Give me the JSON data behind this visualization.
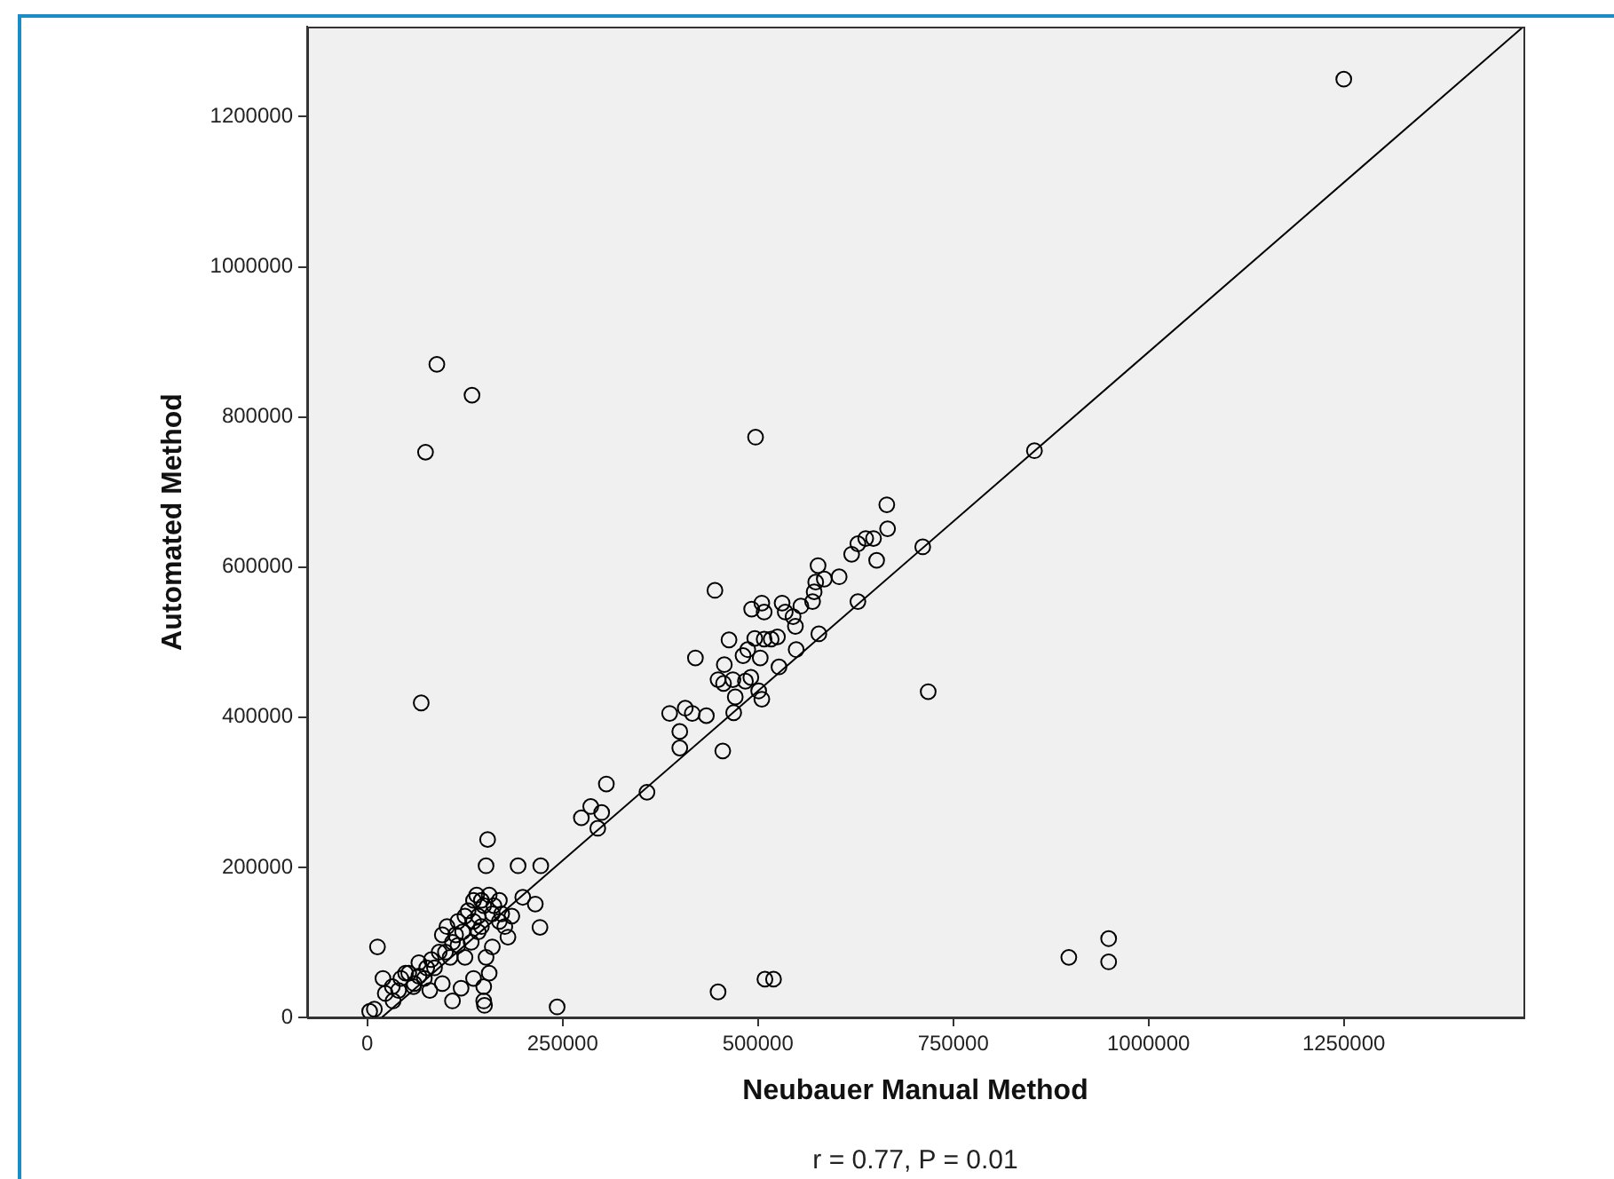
{
  "chart_data": {
    "type": "scatter",
    "xlabel": "Neubauer Manual Method",
    "ylabel": "Automated Method",
    "annotations": [
      "r = 0.77, P = 0.01"
    ],
    "xlim": [
      -77000,
      1480000
    ],
    "ylim": [
      0,
      1320000
    ],
    "xticks": [
      0,
      250000,
      500000,
      750000,
      1000000,
      1250000
    ],
    "yticks": [
      0,
      200000,
      400000,
      600000,
      800000,
      1000000,
      1200000
    ],
    "grid": false,
    "legend": false,
    "marker": "circle",
    "series": [
      {
        "color": "#000000",
        "x": [
          1250000,
          89000,
          134000,
          74500,
          69000,
          497000,
          854000,
          718000,
          711000,
          898000,
          949000,
          949000,
          449000,
          509000,
          520000,
          243000,
          150000,
          149000,
          13000,
          445000,
          455000,
          358000,
          306000,
          286000,
          274000,
          295000,
          300000,
          154000,
          152000,
          193000,
          222000,
          221000,
          215000,
          199000,
          387000,
          400000,
          400000,
          407000,
          416000,
          434000,
          420000,
          449000,
          457000,
          463000,
          456000,
          468000,
          471000,
          469000,
          481000,
          491000,
          492000,
          496000,
          501000,
          505000,
          503000,
          508000,
          508000,
          505000,
          517000,
          527000,
          531000,
          535000,
          545000,
          548000,
          549000,
          555000,
          570000,
          572000,
          574000,
          577000,
          578000,
          585000,
          604000,
          620000,
          628000,
          628000,
          638000,
          648000,
          652000,
          666000,
          665000,
          525000,
          487000,
          484000,
          3000,
          9000,
          20000,
          23000,
          33000,
          40000,
          49000,
          59000,
          66000,
          76000,
          82000,
          92000,
          96000,
          102000,
          109000,
          116000,
          122000,
          129000,
          136000,
          142000,
          149000,
          156000,
          162000,
          169000,
          176000,
          180000,
          169000,
          160000,
          156000,
          149000,
          136000,
          120000,
          109000,
          96000,
          80000,
          66000,
          53000,
          106000,
          116000,
          125000,
          133000,
          142000,
          125000,
          136000,
          146000,
          113000,
          100000,
          86000,
          73000,
          60000,
          140000,
          146000,
          160000,
          172000,
          185000,
          152000,
          32000,
          43000
        ],
        "values": [
          1250000,
          870000,
          829000,
          753000,
          419000,
          773000,
          755000,
          434000,
          627000,
          80000,
          105000,
          74000,
          34000,
          51000,
          51000,
          14000,
          16000,
          22000,
          94000,
          569000,
          355000,
          300000,
          311000,
          281000,
          266000,
          252000,
          273000,
          237000,
          202000,
          202000,
          202000,
          120000,
          151000,
          160000,
          405000,
          381000,
          359000,
          412000,
          405000,
          402000,
          479000,
          450000,
          470000,
          503000,
          445000,
          450000,
          427000,
          406000,
          482000,
          453000,
          544000,
          505000,
          435000,
          424000,
          479000,
          504000,
          540000,
          552000,
          504000,
          467000,
          552000,
          540000,
          534000,
          521000,
          490000,
          548000,
          554000,
          567000,
          580000,
          602000,
          511000,
          584000,
          587000,
          617000,
          631000,
          554000,
          638000,
          638000,
          609000,
          651000,
          683000,
          507000,
          490000,
          448000,
          8000,
          11000,
          52000,
          32000,
          22000,
          36000,
          59000,
          41000,
          55000,
          66000,
          77000,
          87000,
          110000,
          121000,
          100000,
          128000,
          114000,
          142000,
          156000,
          135000,
          149000,
          163000,
          149000,
          156000,
          121000,
          107000,
          128000,
          94000,
          59000,
          41000,
          52000,
          39000,
          22000,
          45000,
          36000,
          73000,
          59000,
          80000,
          96000,
          80000,
          100000,
          114000,
          135000,
          128000,
          121000,
          110000,
          87000,
          66000,
          52000,
          45000,
          163000,
          156000,
          138000,
          138000,
          135000,
          80000,
          41000,
          52000
        ]
      },
      {
        "type": "line",
        "marker": "none",
        "color": "#000000",
        "x": [
          18600,
          1480000
        ],
        "values": [
          0,
          1320000
        ]
      }
    ]
  }
}
